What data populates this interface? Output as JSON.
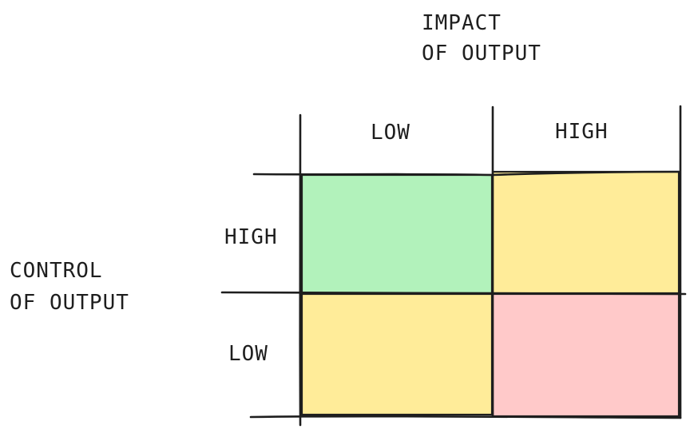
{
  "axes": {
    "impact": {
      "line1": "IMPACT",
      "line2": "OF OUTPUT"
    },
    "control": {
      "line1": "CONTROL",
      "line2": "OF OUTPUT"
    }
  },
  "columns": [
    "LOW",
    "HIGH"
  ],
  "rows": [
    "HIGH",
    "LOW"
  ],
  "quadrants": [
    {
      "row": "HIGH",
      "col": "LOW",
      "color": "#b2f2bb"
    },
    {
      "row": "HIGH",
      "col": "HIGH",
      "color": "#ffec99"
    },
    {
      "row": "LOW",
      "col": "LOW",
      "color": "#ffec99"
    },
    {
      "row": "LOW",
      "col": "HIGH",
      "color": "#ffc9c9"
    }
  ],
  "colors": {
    "stroke": "#1e1e1e",
    "green": "#b2f2bb",
    "yellow": "#ffec99",
    "red": "#ffc9c9"
  }
}
